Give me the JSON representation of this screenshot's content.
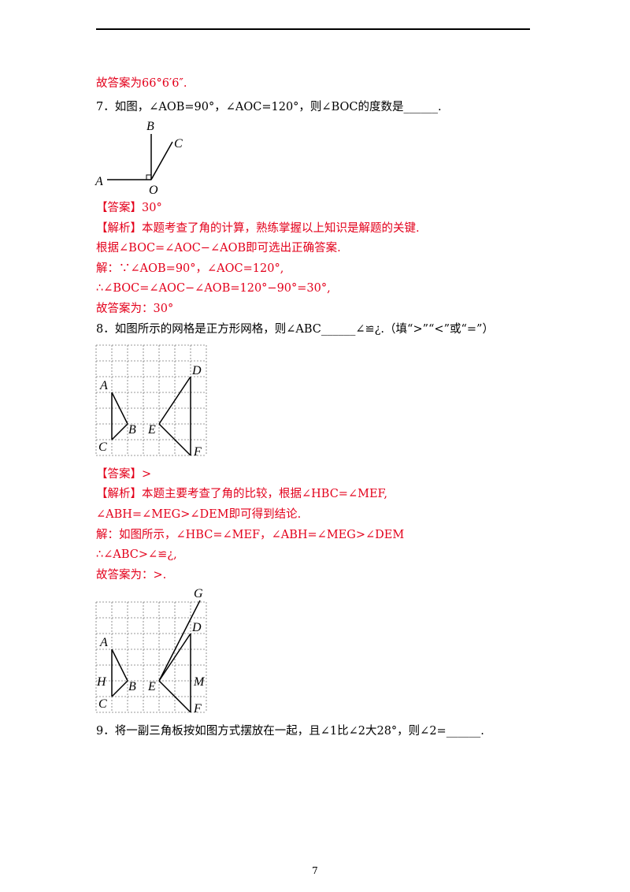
{
  "lines": {
    "l1": "故答案为66°6′6″.",
    "q7": "7．如图，∠AOB=90°，∠AOC=120°，则∠BOC的度数是______.",
    "q7_ans": "【答案】30°",
    "q7_an1": "【解析】本题考查了角的计算，熟练掌握以上知识是解题的关键.",
    "q7_an2": "根据∠BOC=∠AOC−∠AOB即可选出正确答案.",
    "q7_s1": "解：∵∠AOB=90°，∠AOC=120°,",
    "q7_s2": "∴∠BOC=∠AOC−∠AOB=120°−90°=30°,",
    "q7_s3": "故答案为：30°",
    "q8": "8．如图所示的网格是正方形网格，则∠ABC______∠≌¿.（填“>”“<”或“=”）",
    "q8_ans": "【答案】>",
    "q8_an1": "【解析】本题主要考查了角的比较，根据∠HBC=∠MEF,",
    "q8_an2": "∠ABH=∠MEG>∠DEM即可得到结论.",
    "q8_s1": "解：如图所示，∠HBC=∠MEF，∠ABH=∠MEG>∠DEM",
    "q8_s2": "∴∠ABC>∠≌¿,",
    "q8_s3": "故答案为：>.",
    "q9": "9．将一副三角板按如图方式摆放在一起，且∠1比∠2大28°，则∠2=______."
  },
  "fig7": {
    "A": "A",
    "B": "B",
    "C": "C",
    "O": "O"
  },
  "fig8": {
    "A": "A",
    "B": "B",
    "C": "C",
    "D": "D",
    "E": "E",
    "F": "F"
  },
  "fig8b": {
    "A": "A",
    "B": "B",
    "C": "C",
    "D": "D",
    "E": "E",
    "F": "F",
    "G": "G",
    "H": "H",
    "M": "M"
  },
  "page_number": "7"
}
